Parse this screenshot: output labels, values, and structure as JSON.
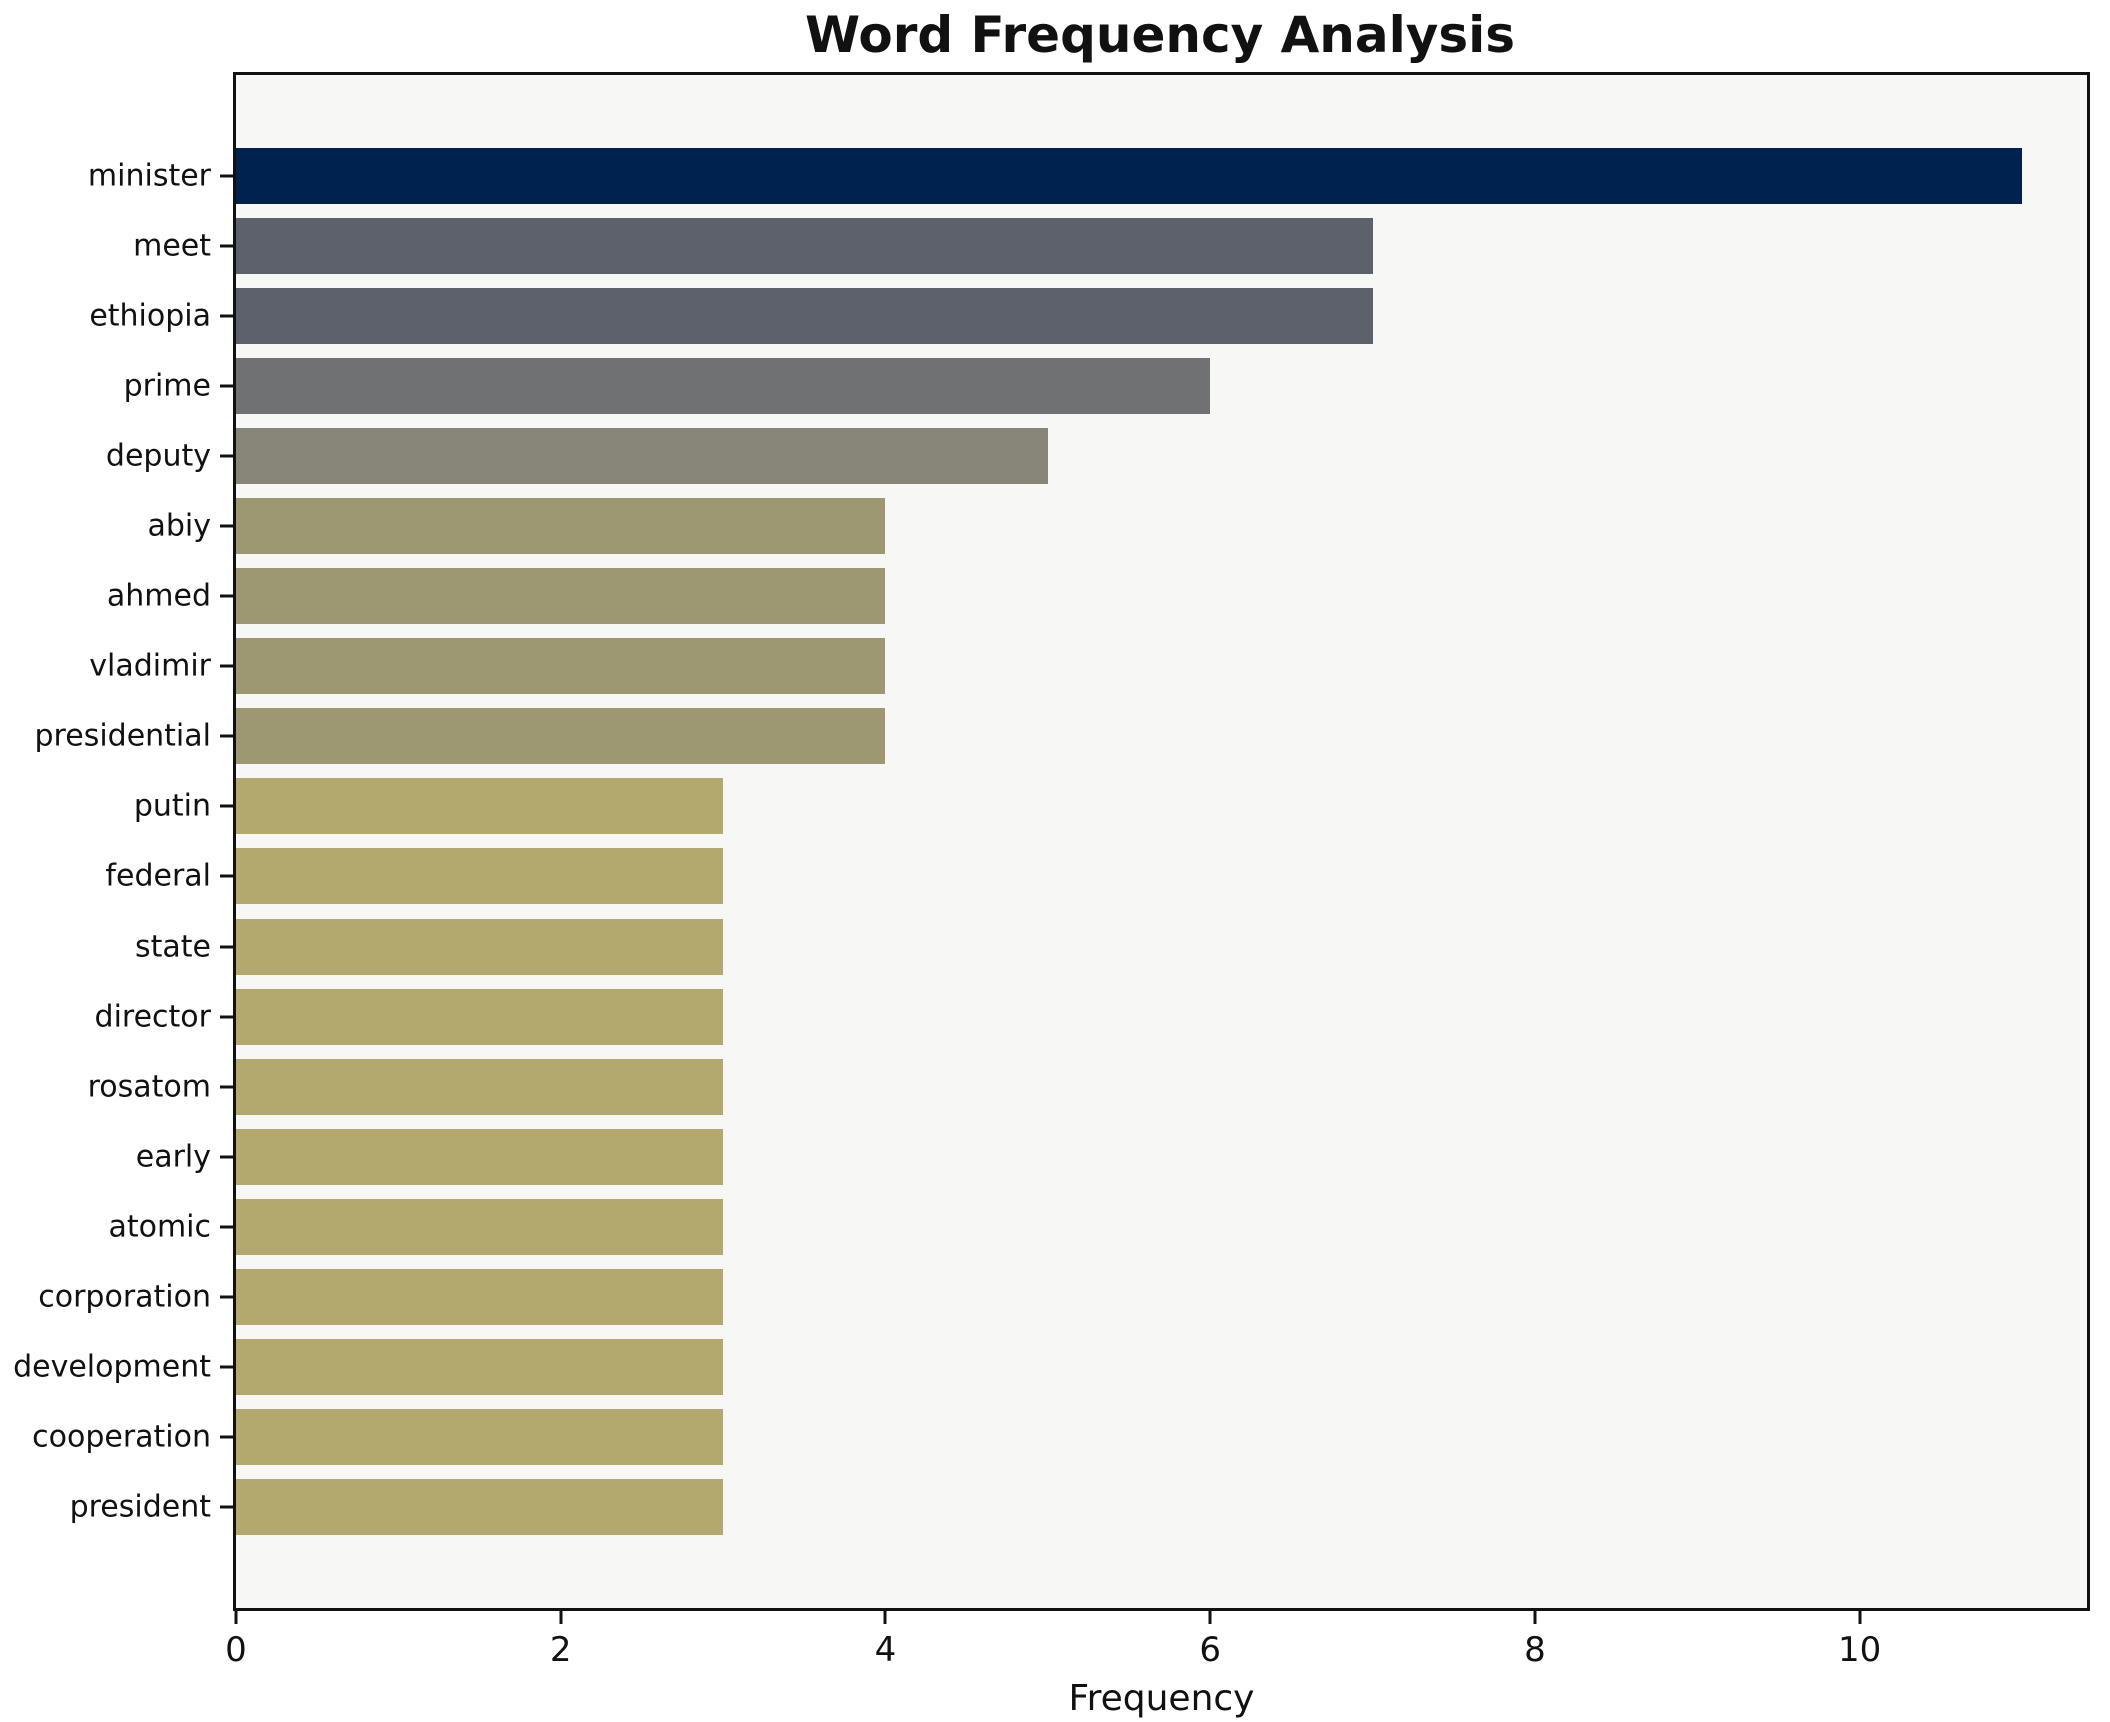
{
  "chart_data": {
    "type": "bar",
    "orientation": "horizontal",
    "title": "Word Frequency Analysis",
    "xlabel": "Frequency",
    "categories": [
      "minister",
      "meet",
      "ethiopia",
      "prime",
      "deputy",
      "abiy",
      "ahmed",
      "vladimir",
      "presidential",
      "putin",
      "federal",
      "state",
      "director",
      "rosatom",
      "early",
      "atomic",
      "corporation",
      "development",
      "cooperation",
      "president"
    ],
    "values": [
      11,
      7,
      7,
      6,
      5,
      4,
      4,
      4,
      4,
      3,
      3,
      3,
      3,
      3,
      3,
      3,
      3,
      3,
      3,
      3
    ],
    "bar_colors": [
      "#00224e",
      "#5c616c",
      "#5c616c",
      "#707173",
      "#868577",
      "#9d9772",
      "#9d9772",
      "#9d9772",
      "#9d9772",
      "#b3a96e",
      "#b3a96e",
      "#b3a96e",
      "#b3a96e",
      "#b3a96e",
      "#b3a96e",
      "#b3a96e",
      "#b3a96e",
      "#b3a96e",
      "#b3a96e",
      "#b3a96e"
    ],
    "xticks": [
      0,
      2,
      4,
      6,
      8,
      10
    ],
    "xlim": [
      0,
      11.4
    ],
    "grid": false,
    "legend": "none",
    "plot_background": "#f7f7f5",
    "figure_background": "#ffffff",
    "spine_color": "#111111",
    "colormap": "cividis-reversed-by-value"
  }
}
